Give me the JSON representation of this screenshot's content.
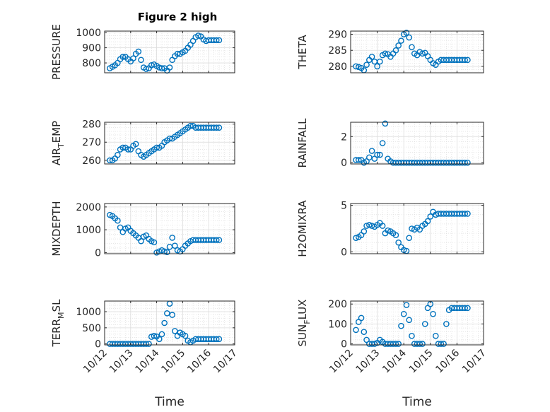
{
  "figure_title": "Figure 2 high",
  "marker_color": "#0072BD",
  "chart_data": [
    {
      "type": "scatter",
      "ylabel": "PRESSURE",
      "ylabel_sub": "",
      "ylabel_rest": "",
      "ylim": [
        735,
        1010
      ],
      "yticks": [
        800,
        900,
        1000
      ],
      "xlim": [
        0,
        5
      ],
      "xticks": [
        0,
        1,
        2,
        3,
        4,
        5
      ],
      "xticklabels": [],
      "x": [
        0.2,
        0.3,
        0.4,
        0.5,
        0.6,
        0.7,
        0.8,
        0.9,
        1.0,
        1.1,
        1.2,
        1.3,
        1.4,
        1.5,
        1.6,
        1.7,
        1.8,
        1.9,
        2.0,
        2.1,
        2.2,
        2.3,
        2.4,
        2.5,
        2.6,
        2.7,
        2.8,
        2.9,
        3.0,
        3.1,
        3.2,
        3.3,
        3.4,
        3.5,
        3.6,
        3.7,
        3.8,
        3.9,
        4.0,
        4.1,
        4.2,
        4.3,
        4.4
      ],
      "y": [
        765,
        775,
        785,
        800,
        825,
        840,
        840,
        825,
        810,
        830,
        860,
        875,
        820,
        770,
        760,
        765,
        785,
        790,
        780,
        770,
        765,
        765,
        750,
        770,
        820,
        845,
        860,
        860,
        870,
        880,
        900,
        920,
        945,
        970,
        980,
        975,
        955,
        945,
        950,
        950,
        950,
        950,
        950
      ]
    },
    {
      "type": "scatter",
      "ylabel": "THETA",
      "ylabel_sub": "",
      "ylabel_rest": "",
      "ylim": [
        278,
        291
      ],
      "yticks": [
        280,
        285,
        290
      ],
      "xlim": [
        0,
        5
      ],
      "xticks": [
        0,
        1,
        2,
        3,
        4,
        5
      ],
      "xticklabels": [],
      "x": [
        0.2,
        0.3,
        0.4,
        0.5,
        0.6,
        0.7,
        0.8,
        0.9,
        1.0,
        1.1,
        1.2,
        1.3,
        1.4,
        1.5,
        1.6,
        1.7,
        1.8,
        1.9,
        2.0,
        2.1,
        2.2,
        2.3,
        2.4,
        2.5,
        2.6,
        2.7,
        2.8,
        2.9,
        3.0,
        3.1,
        3.2,
        3.3,
        3.4,
        3.5,
        3.6,
        3.7,
        3.8,
        3.9,
        4.0,
        4.1,
        4.2,
        4.3,
        4.4
      ],
      "y": [
        280.0,
        279.8,
        279.5,
        278.8,
        280.5,
        282.0,
        283.0,
        281.5,
        280.0,
        281.5,
        283.5,
        284.0,
        283.8,
        283.0,
        284.0,
        285.0,
        286.5,
        288.0,
        290.0,
        290.5,
        289.0,
        286.0,
        284.0,
        283.5,
        284.5,
        284.0,
        284.2,
        283.2,
        282.0,
        281.0,
        280.5,
        281.5,
        282.0,
        282.0,
        282.0,
        282.0,
        282.0,
        282.0,
        282.0,
        282.0,
        282.0,
        282.0,
        282.0
      ]
    },
    {
      "type": "scatter",
      "ylabel": "AIR",
      "ylabel_sub": "T",
      "ylabel_rest": "EMP",
      "ylim": [
        258,
        281
      ],
      "yticks": [
        260,
        270,
        280
      ],
      "xlim": [
        0,
        5
      ],
      "xticks": [
        0,
        1,
        2,
        3,
        4,
        5
      ],
      "xticklabels": [],
      "x": [
        0.2,
        0.3,
        0.4,
        0.5,
        0.6,
        0.7,
        0.8,
        0.9,
        1.0,
        1.1,
        1.2,
        1.3,
        1.4,
        1.5,
        1.6,
        1.7,
        1.8,
        1.9,
        2.0,
        2.1,
        2.2,
        2.3,
        2.4,
        2.5,
        2.6,
        2.7,
        2.8,
        2.9,
        3.0,
        3.1,
        3.2,
        3.3,
        3.4,
        3.5,
        3.6,
        3.7,
        3.8,
        3.9,
        4.0,
        4.1,
        4.2,
        4.3,
        4.4
      ],
      "y": [
        260,
        260,
        261,
        263,
        266,
        267,
        267,
        266,
        266,
        268,
        269,
        265,
        263,
        262,
        263,
        264,
        265,
        266,
        267,
        267,
        268,
        270,
        271,
        272,
        272,
        273,
        274,
        275,
        276,
        277,
        278,
        279,
        279,
        278,
        278,
        278,
        278,
        278,
        278,
        278,
        278,
        278,
        278
      ]
    },
    {
      "type": "scatter",
      "ylabel": "RAINFALL",
      "ylabel_sub": "",
      "ylabel_rest": "",
      "ylim": [
        -0.1,
        3.1
      ],
      "yticks": [
        0,
        2
      ],
      "xlim": [
        0,
        5
      ],
      "xticks": [
        0,
        1,
        2,
        3,
        4,
        5
      ],
      "xticklabels": [],
      "x": [
        0.2,
        0.3,
        0.4,
        0.5,
        0.6,
        0.7,
        0.8,
        0.9,
        1.0,
        1.1,
        1.2,
        1.3,
        1.4,
        1.5,
        1.6,
        1.7,
        1.8,
        1.9,
        2.0,
        2.1,
        2.2,
        2.3,
        2.4,
        2.5,
        2.6,
        2.7,
        2.8,
        2.9,
        3.0,
        3.1,
        3.2,
        3.3,
        3.4,
        3.5,
        3.6,
        3.7,
        3.8,
        3.9,
        4.0,
        4.1,
        4.2,
        4.3,
        4.4
      ],
      "y": [
        0.2,
        0.2,
        0.2,
        0.0,
        0.1,
        0.4,
        0.9,
        0.3,
        0.6,
        0.6,
        1.5,
        3.0,
        0.3,
        0.1,
        0.0,
        0.0,
        0.0,
        0.0,
        0.0,
        0.0,
        0.0,
        0.0,
        0.0,
        0.0,
        0.0,
        0.0,
        0.0,
        0.0,
        0.0,
        0.0,
        0.0,
        0.0,
        0.0,
        0.0,
        0.0,
        0.0,
        0.0,
        0.0,
        0.0,
        0.0,
        0.0,
        0.0,
        0.0
      ]
    },
    {
      "type": "scatter",
      "ylabel": "MIXDEPTH",
      "ylabel_sub": "",
      "ylabel_rest": "",
      "ylim": [
        -50,
        2150
      ],
      "yticks": [
        0,
        1000,
        2000
      ],
      "xlim": [
        0,
        5
      ],
      "xticks": [
        0,
        1,
        2,
        3,
        4,
        5
      ],
      "xticklabels": [],
      "x": [
        0.2,
        0.3,
        0.4,
        0.5,
        0.6,
        0.7,
        0.8,
        0.9,
        1.0,
        1.1,
        1.2,
        1.3,
        1.4,
        1.5,
        1.6,
        1.7,
        1.8,
        1.9,
        2.0,
        2.1,
        2.2,
        2.3,
        2.4,
        2.5,
        2.6,
        2.7,
        2.8,
        2.9,
        3.0,
        3.1,
        3.2,
        3.3,
        3.4,
        3.5,
        3.6,
        3.7,
        3.8,
        3.9,
        4.0,
        4.1,
        4.2,
        4.3,
        4.4
      ],
      "y": [
        1650,
        1600,
        1500,
        1400,
        1100,
        900,
        1050,
        1100,
        950,
        850,
        750,
        650,
        500,
        700,
        750,
        600,
        500,
        450,
        0,
        50,
        100,
        50,
        20,
        250,
        650,
        300,
        100,
        50,
        150,
        300,
        400,
        500,
        550,
        550,
        550,
        550,
        550,
        550,
        550,
        550,
        550,
        550,
        550
      ]
    },
    {
      "type": "scatter",
      "ylabel": "H2OMIXRA",
      "ylabel_sub": "",
      "ylabel_rest": "",
      "ylim": [
        -0.2,
        5.2
      ],
      "yticks": [
        0,
        5
      ],
      "xlim": [
        0,
        5
      ],
      "xticks": [
        0,
        1,
        2,
        3,
        4,
        5
      ],
      "xticklabels": [],
      "x": [
        0.2,
        0.3,
        0.4,
        0.5,
        0.6,
        0.7,
        0.8,
        0.9,
        1.0,
        1.1,
        1.2,
        1.3,
        1.4,
        1.5,
        1.6,
        1.7,
        1.8,
        1.9,
        2.0,
        2.1,
        2.2,
        2.3,
        2.4,
        2.5,
        2.6,
        2.7,
        2.8,
        2.9,
        3.0,
        3.1,
        3.2,
        3.3,
        3.4,
        3.5,
        3.6,
        3.7,
        3.8,
        3.9,
        4.0,
        4.1,
        4.2,
        4.3,
        4.4
      ],
      "y": [
        1.5,
        1.6,
        1.8,
        2.2,
        2.8,
        2.9,
        2.8,
        2.7,
        2.9,
        3.1,
        2.8,
        2.0,
        2.3,
        2.2,
        2.0,
        1.8,
        1.0,
        0.5,
        0.2,
        0.1,
        1.5,
        2.5,
        2.4,
        2.6,
        2.4,
        2.8,
        3.0,
        3.3,
        3.8,
        4.3,
        4.0,
        4.1,
        4.1,
        4.1,
        4.1,
        4.1,
        4.1,
        4.1,
        4.1,
        4.1,
        4.1,
        4.1,
        4.1
      ]
    },
    {
      "type": "scatter",
      "ylabel": "TERR",
      "ylabel_sub": "M",
      "ylabel_rest": "SL",
      "ylim": [
        -30,
        1330
      ],
      "yticks": [
        0,
        500,
        1000
      ],
      "xlim": [
        0,
        5
      ],
      "xticks": [
        0,
        1,
        2,
        3,
        4,
        5
      ],
      "xticklabels": [
        "10/12",
        "10/13",
        "10/14",
        "10/15",
        "10/16",
        "10/17"
      ],
      "xlabel": "Time",
      "x": [
        0.2,
        0.3,
        0.4,
        0.5,
        0.6,
        0.7,
        0.8,
        0.9,
        1.0,
        1.1,
        1.2,
        1.3,
        1.4,
        1.5,
        1.6,
        1.7,
        1.8,
        1.9,
        2.0,
        2.1,
        2.2,
        2.3,
        2.4,
        2.5,
        2.6,
        2.7,
        2.8,
        2.9,
        3.0,
        3.1,
        3.2,
        3.3,
        3.4,
        3.5,
        3.6,
        3.7,
        3.8,
        3.9,
        4.0,
        4.1,
        4.2,
        4.3,
        4.4
      ],
      "y": [
        0,
        0,
        0,
        0,
        0,
        0,
        0,
        0,
        0,
        0,
        0,
        0,
        0,
        0,
        0,
        0,
        220,
        250,
        230,
        150,
        300,
        650,
        950,
        1250,
        900,
        400,
        250,
        350,
        300,
        250,
        100,
        50,
        100,
        150,
        150,
        150,
        150,
        150,
        150,
        150,
        150,
        150,
        150
      ]
    },
    {
      "type": "scatter",
      "ylabel": "SUN",
      "ylabel_sub": "F",
      "ylabel_rest": "LUX",
      "ylim": [
        -5,
        215
      ],
      "yticks": [
        0,
        100,
        200
      ],
      "xlim": [
        0,
        5
      ],
      "xticks": [
        0,
        1,
        2,
        3,
        4,
        5
      ],
      "xticklabels": [
        "10/12",
        "10/13",
        "10/14",
        "10/15",
        "10/16",
        "10/17"
      ],
      "xlabel": "Time",
      "x": [
        0.2,
        0.3,
        0.4,
        0.5,
        0.6,
        0.7,
        0.8,
        0.9,
        1.0,
        1.1,
        1.2,
        1.3,
        1.4,
        1.5,
        1.6,
        1.7,
        1.8,
        1.9,
        2.0,
        2.1,
        2.2,
        2.3,
        2.4,
        2.5,
        2.6,
        2.7,
        2.8,
        2.9,
        3.0,
        3.1,
        3.2,
        3.3,
        3.4,
        3.5,
        3.6,
        3.7,
        3.8,
        3.9,
        4.0,
        4.1,
        4.2,
        4.3,
        4.4
      ],
      "y": [
        70,
        110,
        130,
        60,
        20,
        0,
        0,
        0,
        5,
        20,
        10,
        0,
        0,
        0,
        0,
        0,
        0,
        90,
        150,
        195,
        120,
        40,
        0,
        0,
        0,
        0,
        100,
        180,
        200,
        150,
        40,
        0,
        0,
        0,
        100,
        170,
        180,
        180,
        180,
        180,
        180,
        180,
        180
      ]
    }
  ]
}
